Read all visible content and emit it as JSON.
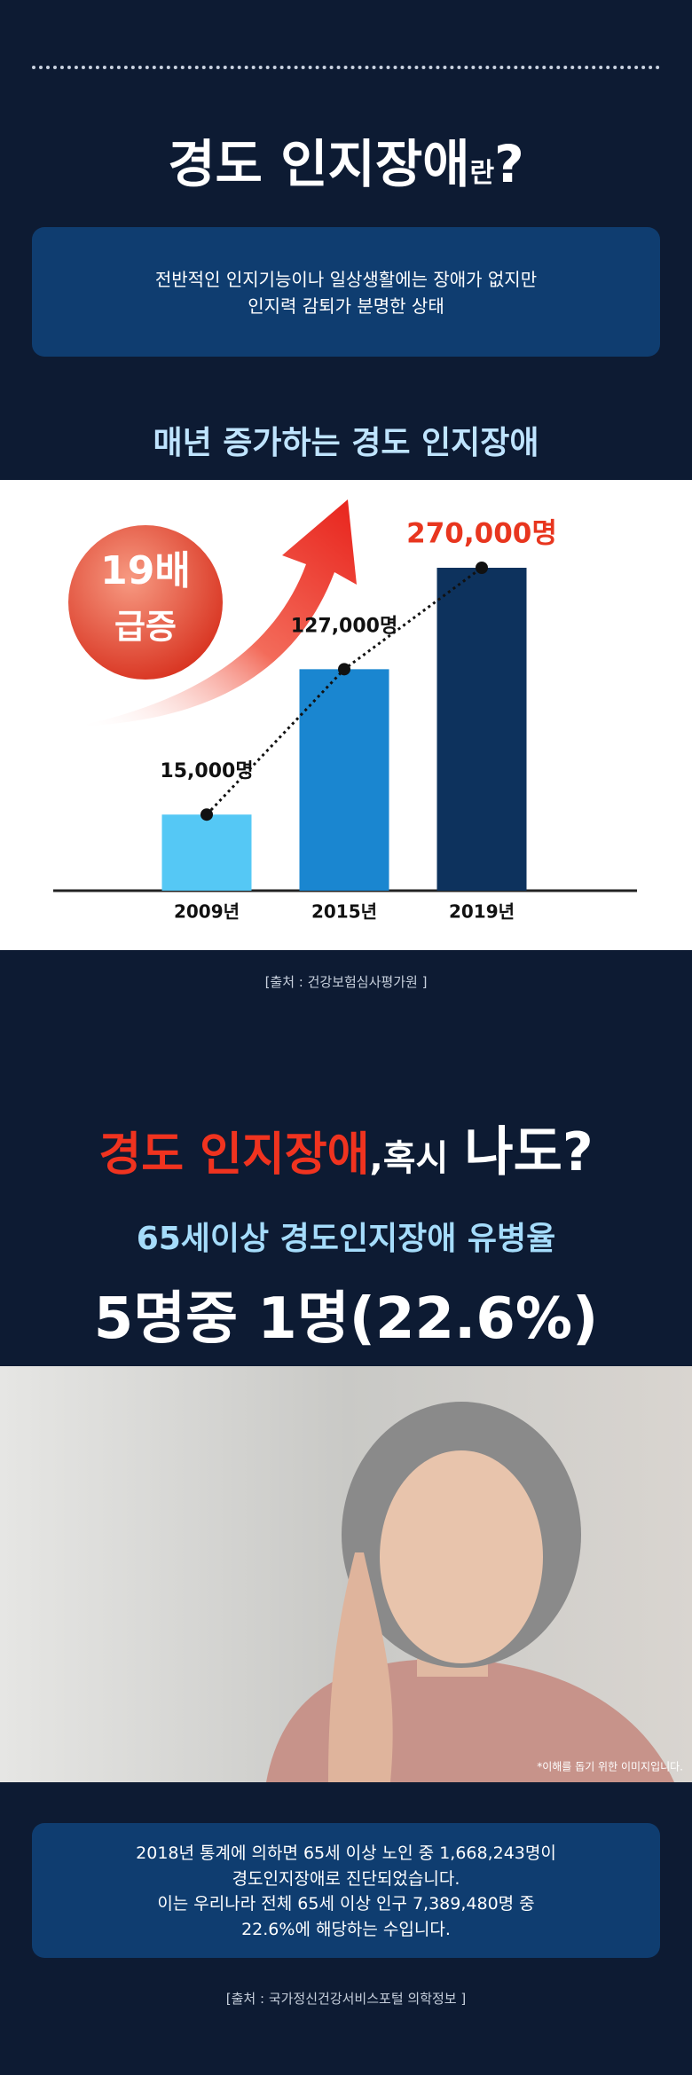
{
  "header": {
    "title": "경도 인지장애",
    "title_suffix": "란",
    "title_end": "?"
  },
  "definition": [
    "전반적인 인지기능이나 일상생활에는 장애가 없지만",
    "인지력 감퇴가 분명한 상태"
  ],
  "section_title": "매년 증가하는 경도 인지장애",
  "badge": [
    "19배",
    "급증"
  ],
  "chart_data": {
    "type": "bar",
    "categories": [
      "2009년",
      "2015년",
      "2019년"
    ],
    "values": [
      15000,
      127000,
      270000
    ],
    "value_labels": [
      "15,000명",
      "127,000명",
      "270,000명"
    ],
    "colors": [
      "#55c8f5",
      "#1a86d0",
      "#0d325d"
    ],
    "value_label_colors": [
      "#111111",
      "#111111",
      "#e8361f"
    ]
  },
  "source1": "[출처 : 건강보험심사평가원 ]",
  "question": [
    "경도 인지장애",
    ",혹시",
    "나도?"
  ],
  "stat_title": "65세이상 경도인지장애 유병율",
  "stat_value": "5명중 1명(22.6%)",
  "photo_caption": "*이해를 돕기 위한 이미지입니다.",
  "stats_text": [
    "2018년 통계에 의하면 65세 이상 노인 중 1,668,243명이",
    "경도인지장애로 진단되었습니다.",
    "이는 우리나라 전체 65세 이상 인구 7,389,480명 중",
    "22.6%에 해당하는 수입니다."
  ],
  "source2": "[출처 : 국가정신건강서비스포털 의학정보 ]"
}
